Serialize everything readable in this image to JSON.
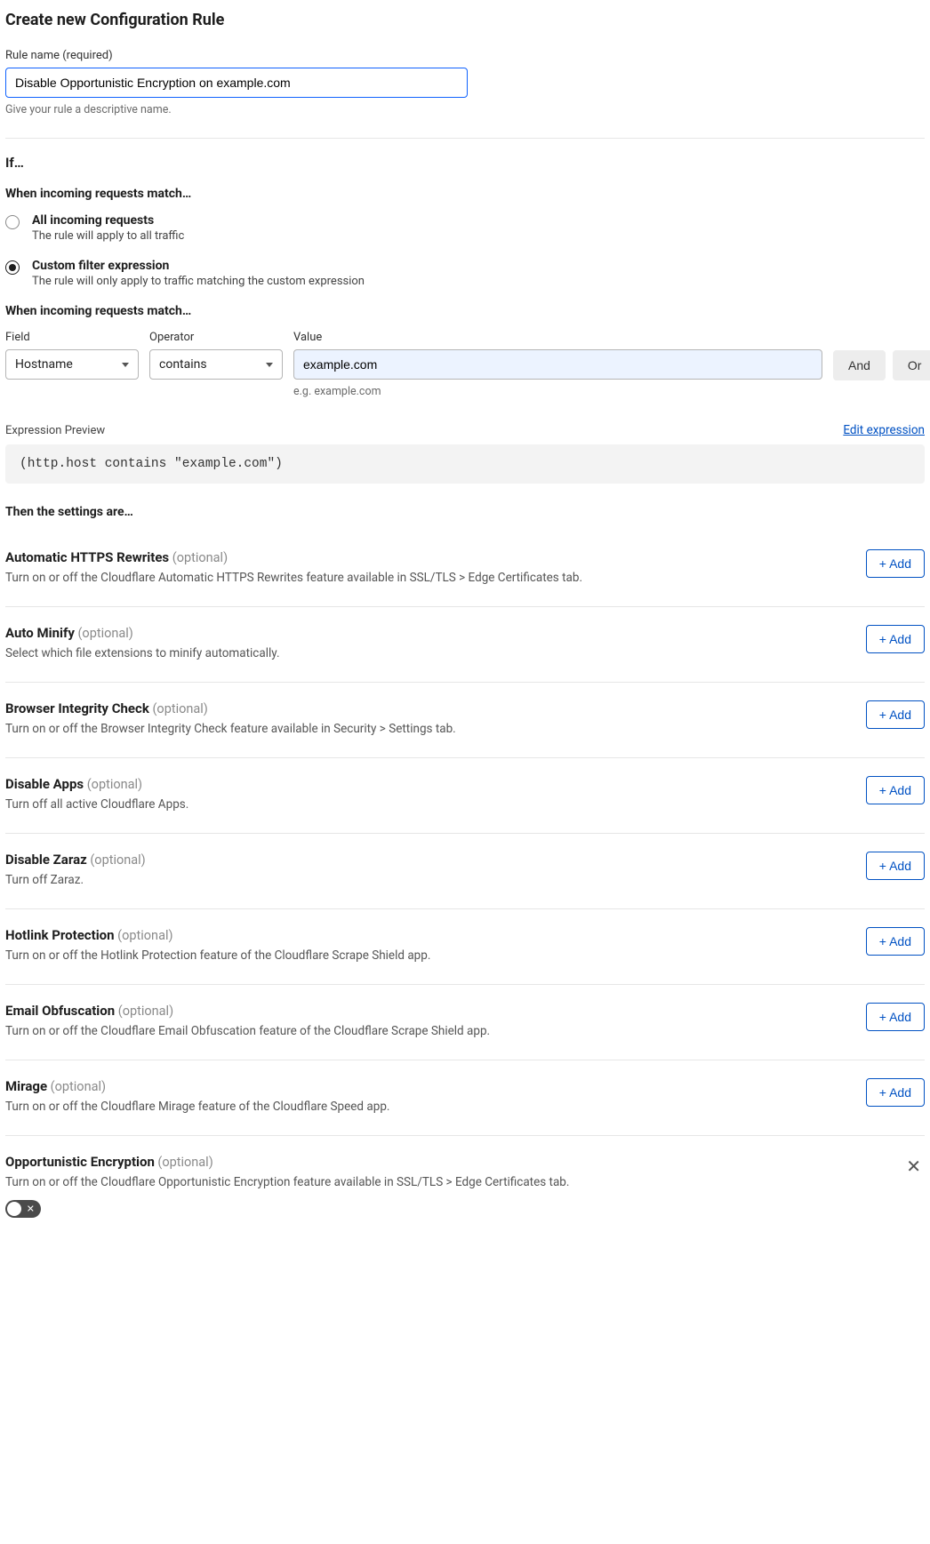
{
  "page_title": "Create new Configuration Rule",
  "rule_name": {
    "label": "Rule name (required)",
    "value": "Disable Opportunistic Encryption on example.com",
    "helper": "Give your rule a descriptive name."
  },
  "if_heading": "If…",
  "match_heading": "When incoming requests match…",
  "radios": {
    "all": {
      "title": "All incoming requests",
      "desc": "The rule will apply to all traffic"
    },
    "custom": {
      "title": "Custom filter expression",
      "desc": "The rule will only apply to traffic matching the custom expression"
    }
  },
  "match_heading2": "When incoming requests match…",
  "expr": {
    "field_label": "Field",
    "field_value": "Hostname",
    "op_label": "Operator",
    "op_value": "contains",
    "value_label": "Value",
    "value_value": "example.com",
    "value_helper": "e.g. example.com",
    "and_label": "And",
    "or_label": "Or"
  },
  "preview": {
    "label": "Expression Preview",
    "edit": "Edit expression",
    "code": "(http.host contains \"example.com\")"
  },
  "then_heading": "Then the settings are…",
  "add_label": "+ Add",
  "optional_label": "(optional)",
  "settings": [
    {
      "title": "Automatic HTTPS Rewrites",
      "desc": "Turn on or off the Cloudflare Automatic HTTPS Rewrites feature available in SSL/TLS > Edge Certificates tab."
    },
    {
      "title": "Auto Minify",
      "desc": "Select which file extensions to minify automatically."
    },
    {
      "title": "Browser Integrity Check",
      "desc": "Turn on or off the Browser Integrity Check feature available in Security > Settings tab."
    },
    {
      "title": "Disable Apps",
      "desc": "Turn off all active Cloudflare Apps."
    },
    {
      "title": "Disable Zaraz",
      "desc": "Turn off Zaraz."
    },
    {
      "title": "Hotlink Protection",
      "desc": "Turn on or off the Hotlink Protection feature of the Cloudflare Scrape Shield app."
    },
    {
      "title": "Email Obfuscation",
      "desc": "Turn on or off the Cloudflare Email Obfuscation feature of the Cloudflare Scrape Shield app."
    },
    {
      "title": "Mirage",
      "desc": "Turn on or off the Cloudflare Mirage feature of the Cloudflare Speed app."
    }
  ],
  "opportunistic": {
    "title": "Opportunistic Encryption",
    "desc": "Turn on or off the Cloudflare Opportunistic Encryption feature available in SSL/TLS > Edge Certificates tab."
  },
  "colors": {
    "accent": "#0051c3",
    "focus_border": "#0f62fe",
    "value_bg": "#ecf3ff",
    "divider": "#e6e6e6",
    "muted": "#8a8a8a"
  }
}
